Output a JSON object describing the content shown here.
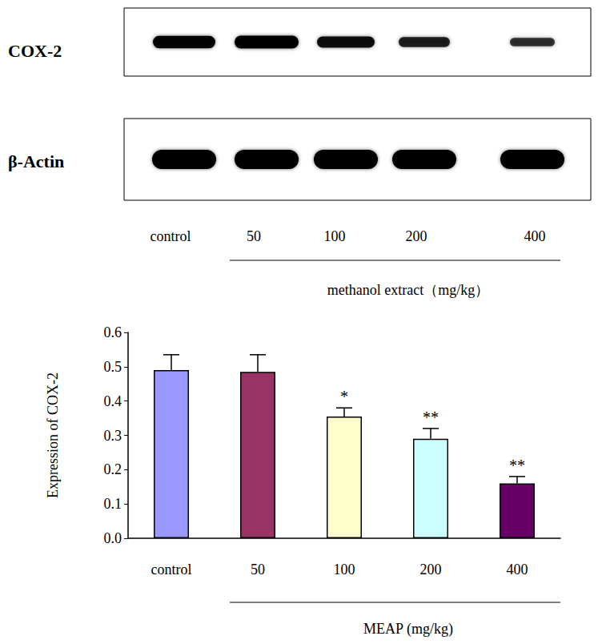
{
  "chart_data": {
    "type": "bar",
    "categories": [
      "control",
      "50",
      "100",
      "200",
      "400"
    ],
    "values": [
      0.49,
      0.485,
      0.355,
      0.29,
      0.16
    ],
    "error": [
      0.045,
      0.05,
      0.025,
      0.03,
      0.02
    ],
    "annotations": [
      null,
      null,
      "*",
      "**",
      "**"
    ],
    "colors": [
      "#9999ff",
      "#993366",
      "#ffffcc",
      "#ccffff",
      "#660066"
    ],
    "ylabel": "Expression of COX-2",
    "xlabel": "MEAP (mg/kg)",
    "ylim": [
      0,
      0.6
    ],
    "yticks": [
      {
        "value": 0,
        "label": "0.0"
      },
      0.1,
      0.2,
      0.3,
      0.4,
      0.5,
      0.6
    ],
    "grid": false
  },
  "blot": {
    "rows": [
      {
        "label": "COX-2",
        "band_intensity": [
          0.95,
          1.0,
          0.8,
          0.6,
          0.4
        ]
      },
      {
        "label": "β-Actin",
        "band_intensity": [
          1.0,
          1.0,
          1.0,
          1.0,
          1.0
        ]
      }
    ],
    "lanes": [
      "control",
      "50",
      "100",
      "200",
      "400"
    ],
    "group_label": "methanol extract（mg/kg）"
  }
}
